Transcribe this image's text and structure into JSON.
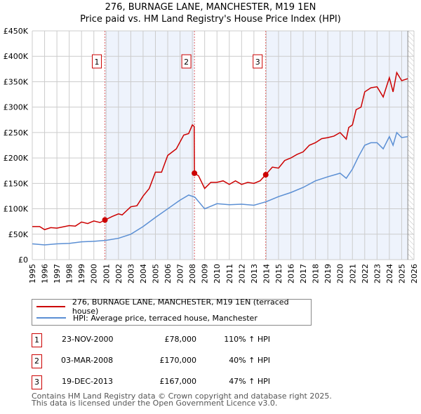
{
  "chart_data": {
    "type": "line",
    "title": "276, BURNAGE LANE, MANCHESTER, M19 1EN",
    "subtitle": "Price paid vs. HM Land Registry's House Price Index (HPI)",
    "xlim": [
      1995,
      2026
    ],
    "ylim": [
      0,
      450000
    ],
    "x_ticks": [
      "1995",
      "1996",
      "1997",
      "1998",
      "1999",
      "2000",
      "2001",
      "2002",
      "2003",
      "2004",
      "2005",
      "2006",
      "2007",
      "2008",
      "2009",
      "2010",
      "2011",
      "2012",
      "2013",
      "2014",
      "2015",
      "2016",
      "2017",
      "2018",
      "2019",
      "2020",
      "2021",
      "2022",
      "2023",
      "2024",
      "2025",
      "2026"
    ],
    "y_ticks": [
      {
        "v": 0,
        "l": "£0"
      },
      {
        "v": 50000,
        "l": "£50K"
      },
      {
        "v": 100000,
        "l": "£100K"
      },
      {
        "v": 150000,
        "l": "£150K"
      },
      {
        "v": 200000,
        "l": "£200K"
      },
      {
        "v": 250000,
        "l": "£250K"
      },
      {
        "v": 300000,
        "l": "£300K"
      },
      {
        "v": 350000,
        "l": "£350K"
      },
      {
        "v": 400000,
        "l": "£400K"
      },
      {
        "v": 450000,
        "l": "£450K"
      }
    ],
    "grid": true,
    "shaded_ranges": [
      [
        2000.9,
        2008.17
      ],
      [
        2013.96,
        2025.5
      ]
    ],
    "hatched_from": 2025.5,
    "series": [
      {
        "name": "276, BURNAGE LANE, MANCHESTER, M19 1EN (terraced house)",
        "color": "#cc0000",
        "points": [
          [
            1995,
            65
          ],
          [
            1995.6,
            65
          ],
          [
            1996,
            59
          ],
          [
            1996.5,
            63
          ],
          [
            1997,
            62
          ],
          [
            1998,
            67
          ],
          [
            1998.5,
            66
          ],
          [
            1999,
            74
          ],
          [
            1999.5,
            71
          ],
          [
            2000,
            76
          ],
          [
            2000.5,
            73
          ],
          [
            2000.9,
            78
          ],
          [
            2001.5,
            85
          ],
          [
            2002,
            90
          ],
          [
            2002.3,
            88
          ],
          [
            2003,
            104
          ],
          [
            2003.5,
            106
          ],
          [
            2004,
            125
          ],
          [
            2004.5,
            140
          ],
          [
            2005,
            172
          ],
          [
            2005.5,
            172
          ],
          [
            2006,
            205
          ],
          [
            2006.7,
            218
          ],
          [
            2007.3,
            245
          ],
          [
            2007.7,
            248
          ],
          [
            2008,
            265
          ],
          [
            2008.15,
            262
          ],
          [
            2008.17,
            170
          ],
          [
            2008.5,
            165
          ],
          [
            2009,
            140
          ],
          [
            2009.5,
            152
          ],
          [
            2010,
            152
          ],
          [
            2010.5,
            155
          ],
          [
            2011,
            148
          ],
          [
            2011.5,
            155
          ],
          [
            2012,
            148
          ],
          [
            2012.5,
            152
          ],
          [
            2013,
            150
          ],
          [
            2013.5,
            155
          ],
          [
            2013.96,
            167
          ],
          [
            2014.5,
            182
          ],
          [
            2015,
            180
          ],
          [
            2015.5,
            195
          ],
          [
            2016,
            200
          ],
          [
            2016.5,
            207
          ],
          [
            2017,
            212
          ],
          [
            2017.5,
            225
          ],
          [
            2018,
            230
          ],
          [
            2018.5,
            238
          ],
          [
            2019,
            240
          ],
          [
            2019.5,
            243
          ],
          [
            2020,
            250
          ],
          [
            2020.5,
            237
          ],
          [
            2020.7,
            260
          ],
          [
            2021,
            265
          ],
          [
            2021.3,
            295
          ],
          [
            2021.7,
            300
          ],
          [
            2022,
            330
          ],
          [
            2022.5,
            338
          ],
          [
            2023,
            340
          ],
          [
            2023.5,
            320
          ],
          [
            2024,
            358
          ],
          [
            2024.3,
            330
          ],
          [
            2024.6,
            368
          ],
          [
            2025,
            352
          ],
          [
            2025.5,
            356
          ]
        ]
      },
      {
        "name": "HPI: Average price, terraced house, Manchester",
        "color": "#5b8fd4",
        "points": [
          [
            1995,
            31
          ],
          [
            1996,
            29
          ],
          [
            1997,
            31
          ],
          [
            1998,
            32
          ],
          [
            1999,
            35
          ],
          [
            2000,
            36
          ],
          [
            2001,
            38
          ],
          [
            2002,
            42
          ],
          [
            2003,
            50
          ],
          [
            2004,
            65
          ],
          [
            2005,
            83
          ],
          [
            2006,
            100
          ],
          [
            2007,
            117
          ],
          [
            2007.7,
            127
          ],
          [
            2008.2,
            123
          ],
          [
            2009,
            100
          ],
          [
            2010,
            110
          ],
          [
            2011,
            108
          ],
          [
            2012,
            109
          ],
          [
            2013,
            107
          ],
          [
            2014,
            114
          ],
          [
            2015,
            124
          ],
          [
            2016,
            132
          ],
          [
            2017,
            142
          ],
          [
            2018,
            155
          ],
          [
            2019,
            163
          ],
          [
            2020,
            170
          ],
          [
            2020.5,
            160
          ],
          [
            2021,
            178
          ],
          [
            2021.5,
            203
          ],
          [
            2022,
            225
          ],
          [
            2022.5,
            230
          ],
          [
            2023,
            230
          ],
          [
            2023.5,
            218
          ],
          [
            2024,
            242
          ],
          [
            2024.3,
            225
          ],
          [
            2024.6,
            250
          ],
          [
            2025,
            240
          ],
          [
            2025.5,
            242
          ]
        ]
      }
    ],
    "value_unit": "£K",
    "sales": [
      {
        "label": "1",
        "x": 2000.9,
        "y": 78
      },
      {
        "label": "2",
        "x": 2008.17,
        "y": 170
      },
      {
        "label": "3",
        "x": 2013.96,
        "y": 167
      }
    ]
  },
  "legend": {
    "property": "276, BURNAGE LANE, MANCHESTER, M19 1EN (terraced house)",
    "hpi": "HPI: Average price, terraced house, Manchester"
  },
  "transactions": [
    {
      "num": "1",
      "date": "23-NOV-2000",
      "price": "£78,000",
      "hpi": "110% ↑ HPI"
    },
    {
      "num": "2",
      "date": "03-MAR-2008",
      "price": "£170,000",
      "hpi": "40% ↑ HPI"
    },
    {
      "num": "3",
      "date": "19-DEC-2013",
      "price": "£167,000",
      "hpi": "47% ↑ HPI"
    }
  ],
  "footer": {
    "line1": "Contains HM Land Registry data © Crown copyright and database right 2025.",
    "line2": "This data is licensed under the Open Government Licence v3.0."
  }
}
